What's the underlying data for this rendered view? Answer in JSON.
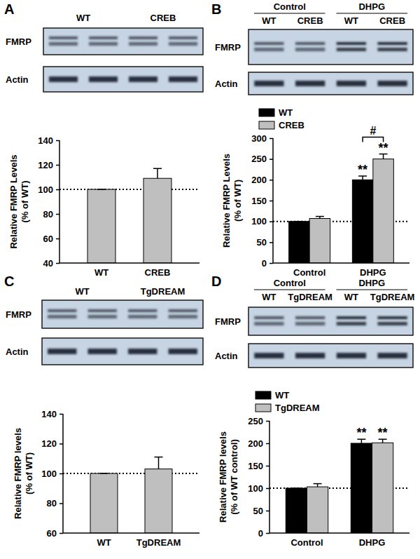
{
  "blots": [
    {
      "label": "A",
      "lanes": [
        "WT",
        "CREB"
      ],
      "rows": [
        "FMRP",
        "Actin"
      ]
    },
    {
      "label": "B",
      "groups": [
        "Control",
        "DHPG"
      ],
      "lanes": [
        "WT",
        "CREB",
        "WT",
        "CREB"
      ],
      "rows": [
        "FMRP",
        "Actin"
      ]
    },
    {
      "label": "C",
      "lanes": [
        "WT",
        "TgDREAM"
      ],
      "rows": [
        "FMRP",
        "Actin"
      ]
    },
    {
      "label": "D",
      "groups": [
        "Control",
        "DHPG"
      ],
      "lanes": [
        "WT",
        "TgDREAM",
        "WT",
        "TgDREAM"
      ],
      "rows": [
        "FMRP",
        "Actin"
      ]
    }
  ],
  "chart_data": [
    {
      "type": "bar",
      "categories": [
        "WT",
        "CREB"
      ],
      "values": [
        100,
        109
      ],
      "errors": [
        0,
        8
      ],
      "color": "#bfbfbf",
      "ylabel": [
        "Relative FMRP Levels",
        "(% of WT)"
      ],
      "ylim": [
        40,
        140
      ],
      "yticks": [
        40,
        60,
        80,
        100,
        120,
        140
      ],
      "reference_line": 100
    },
    {
      "type": "bar",
      "categories": [
        "Control",
        "DHPG"
      ],
      "series": [
        {
          "name": "WT",
          "color": "#000000",
          "values": [
            100,
            200
          ],
          "errors": [
            0,
            9
          ]
        },
        {
          "name": "CREB",
          "color": "#bfbfbf",
          "values": [
            107,
            250
          ],
          "errors": [
            5,
            12
          ]
        }
      ],
      "ylabel": [
        "Relative FMRP Levels",
        "(% of WT)"
      ],
      "ylim": [
        0,
        300
      ],
      "yticks": [
        0,
        50,
        100,
        150,
        200,
        250,
        300
      ],
      "reference_line": 100,
      "legend": "top-left",
      "annotations": [
        {
          "text": "**",
          "category": 1,
          "series": 0
        },
        {
          "text": "**",
          "category": 1,
          "series": 1
        },
        {
          "text": "#",
          "category": 1,
          "series": [
            0,
            1
          ]
        }
      ]
    },
    {
      "type": "bar",
      "categories": [
        "WT",
        "TgDREAM"
      ],
      "values": [
        100,
        103
      ],
      "errors": [
        0,
        8
      ],
      "color": "#bfbfbf",
      "ylabel": [
        "Relative FMRP levels",
        "(% of WT)"
      ],
      "ylim": [
        60,
        140
      ],
      "yticks": [
        60,
        80,
        100,
        120,
        140
      ],
      "reference_line": 100
    },
    {
      "type": "bar",
      "categories": [
        "Control",
        "DHPG"
      ],
      "series": [
        {
          "name": "WT",
          "color": "#000000",
          "values": [
            100,
            200
          ],
          "errors": [
            0,
            9
          ]
        },
        {
          "name": "TgDREAM",
          "color": "#bfbfbf",
          "values": [
            103,
            201
          ],
          "errors": [
            7,
            8
          ]
        }
      ],
      "ylabel": [
        "Relative FMRP levels",
        "(% of WT control)"
      ],
      "ylim": [
        0,
        250
      ],
      "yticks": [
        0,
        50,
        100,
        150,
        200,
        250
      ],
      "reference_line": 100,
      "legend": "top-left",
      "annotations": [
        {
          "text": "**",
          "category": 1,
          "series": 0
        },
        {
          "text": "**",
          "category": 1,
          "series": 1
        }
      ]
    }
  ]
}
